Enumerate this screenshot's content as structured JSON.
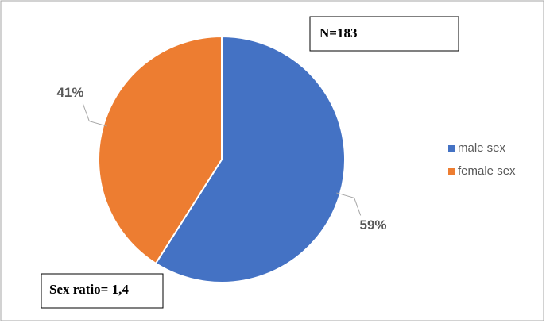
{
  "chart_data": {
    "type": "pie",
    "categories": [
      "male sex",
      "female sex"
    ],
    "values": [
      59,
      41
    ],
    "value_labels": [
      "59%",
      "41%"
    ],
    "colors": [
      "#4472c4",
      "#ed7d31"
    ],
    "annotations": [
      "N=183",
      "Sex ratio= 1,4"
    ]
  }
}
